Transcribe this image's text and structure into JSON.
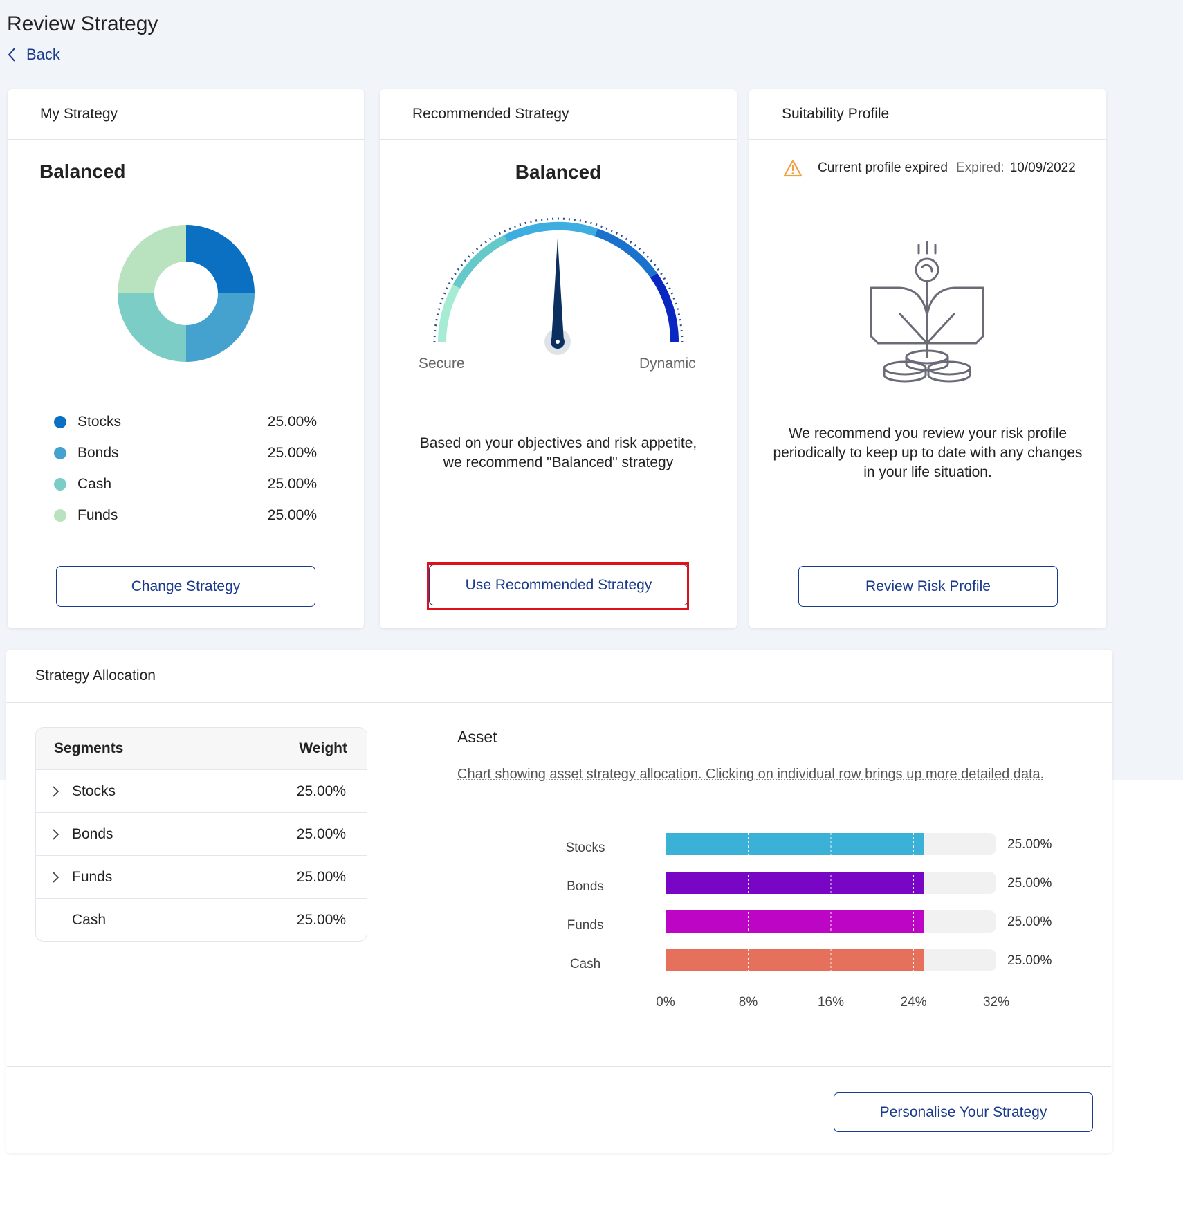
{
  "page": {
    "title": "Review Strategy",
    "back_label": "Back"
  },
  "my_strategy": {
    "header": "My Strategy",
    "name": "Balanced",
    "donut": [
      {
        "name": "Stocks",
        "value": 25,
        "color": "#0b6fc2"
      },
      {
        "name": "Bonds",
        "value": 25,
        "color": "#45a2cf"
      },
      {
        "name": "Cash",
        "value": 25,
        "color": "#7dcdc7"
      },
      {
        "name": "Funds",
        "value": 25,
        "color": "#b9e3be"
      }
    ],
    "legend": [
      {
        "label": "Stocks",
        "value": "25.00%",
        "color": "#0b6fc2"
      },
      {
        "label": "Bonds",
        "value": "25.00%",
        "color": "#45a2cf"
      },
      {
        "label": "Cash",
        "value": "25.00%",
        "color": "#7dcdc7"
      },
      {
        "label": "Funds",
        "value": "25.00%",
        "color": "#b9e3be"
      }
    ],
    "button": "Change Strategy"
  },
  "recommended": {
    "header": "Recommended Strategy",
    "name": "Balanced",
    "gauge_min_label": "Secure",
    "gauge_max_label": "Dynamic",
    "gauge_level": 0.5,
    "text_line1": "Based on your objectives and risk appetite,",
    "text_line2": "we recommend \"Balanced\" strategy",
    "button": "Use Recommended Strategy"
  },
  "suitability": {
    "header": "Suitability Profile",
    "warning": "Current profile expired",
    "expired_label": "Expired:",
    "expired_date": "10/09/2022",
    "text_line1": "We recommend you review your risk profile",
    "text_line2": "periodically to keep up to date with any changes",
    "text_line3": "in your life situation.",
    "button": "Review Risk Profile"
  },
  "allocation": {
    "header": "Strategy Allocation",
    "table_headers": {
      "segment": "Segments",
      "weight": "Weight"
    },
    "rows": [
      {
        "name": "Stocks",
        "weight": "25.00%",
        "expandable": true
      },
      {
        "name": "Bonds",
        "weight": "25.00%",
        "expandable": true
      },
      {
        "name": "Funds",
        "weight": "25.00%",
        "expandable": true
      },
      {
        "name": "Cash",
        "weight": "25.00%",
        "expandable": false
      }
    ],
    "asset_title": "Asset",
    "asset_description": "Chart showing asset strategy allocation. Clicking on individual row brings up more detailed data.",
    "button": "Personalise Your Strategy"
  },
  "chart_data": {
    "type": "bar",
    "orientation": "horizontal",
    "categories": [
      "Stocks",
      "Bonds",
      "Funds",
      "Cash"
    ],
    "values": [
      25,
      25,
      25,
      25
    ],
    "value_labels": [
      "25.00%",
      "25.00%",
      "25.00%",
      "25.00%"
    ],
    "colors": [
      "#3bb1d8",
      "#7a06c5",
      "#bd06c5",
      "#e5705c"
    ],
    "xlim": [
      0,
      32
    ],
    "x_ticks": [
      "0%",
      "8%",
      "16%",
      "24%",
      "32%"
    ],
    "grid": true
  }
}
